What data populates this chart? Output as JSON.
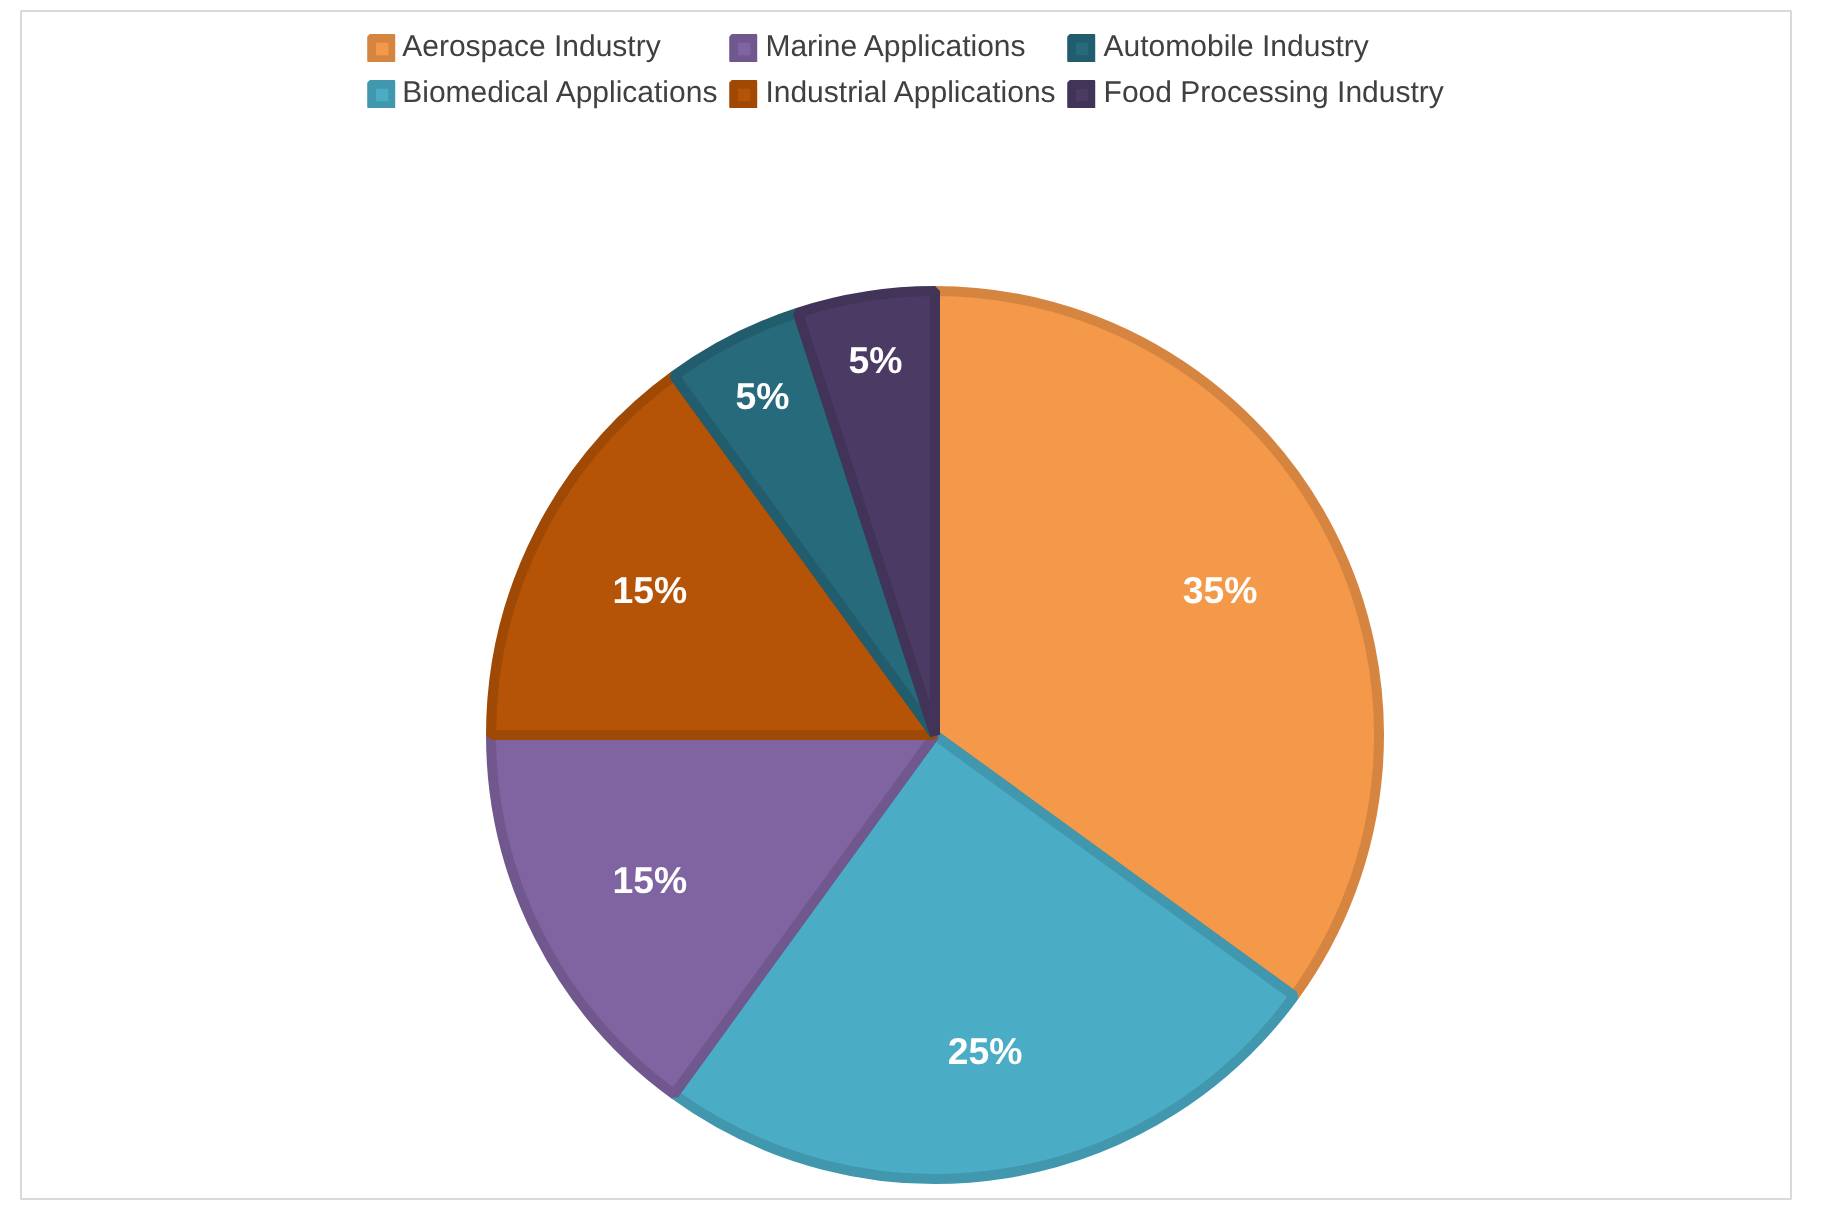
{
  "chart_data": {
    "type": "pie",
    "categories": [
      "Aerospace Industry",
      "Biomedical Applications",
      "Marine Applications",
      "Industrial Applications",
      "Automobile Industry",
      "Food Processing Industry"
    ],
    "values": [
      35,
      25,
      15,
      15,
      5,
      5
    ],
    "colors": [
      "#f4984a",
      "#4aacc5",
      "#8064a2",
      "#b55306",
      "#266a7c",
      "#4b3a64"
    ],
    "value_labels": [
      "35%",
      "25%",
      "15%",
      "15%",
      "5%",
      "5%"
    ],
    "legend": "top"
  }
}
